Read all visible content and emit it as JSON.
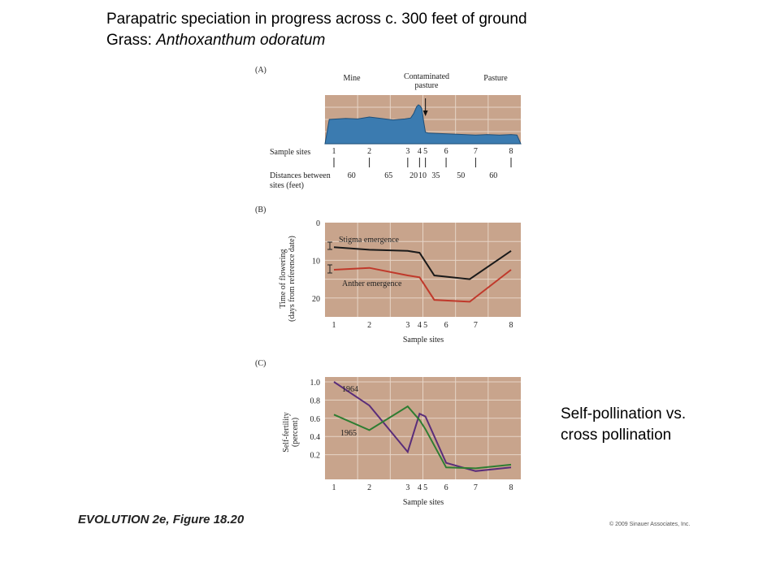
{
  "slide": {
    "title_line1": "Parapatric speciation in progress across c. 300 feet of ground",
    "title_line2_prefix": "Grass: ",
    "title_line2_italic": "Anthoxanthum odoratum",
    "side_note_line1": "Self-pollination  vs.",
    "side_note_line2": "cross pollination",
    "footer_left": "EVOLUTION 2e, Figure 18.20",
    "footer_right": "© 2009 Sinauer Associates, Inc."
  },
  "colors": {
    "panel_bg": "#c8a48c",
    "grid": "#e6d4c6",
    "profile_fill": "#3b7bb0",
    "stigma": "#1a1a1a",
    "anther": "#c0392b",
    "series_1964": "#5a2d7a",
    "series_1965": "#2e7d32"
  },
  "chart_data": [
    {
      "type": "area",
      "panel_label": "(A)",
      "region_labels": [
        "Mine",
        "Contaminated\npasture",
        "Pasture"
      ],
      "site_row_label": "Sample sites",
      "sites": [
        "1",
        "2",
        "3",
        "4",
        "5",
        "6",
        "7",
        "8"
      ],
      "distance_row_label_line1": "Distances between",
      "distance_row_label_line2": "sites (feet)",
      "distances": [
        "60",
        "65",
        "20",
        "10",
        "35",
        "50",
        "60"
      ],
      "site_positions": [
        0,
        60,
        125,
        145,
        155,
        190,
        240,
        300
      ],
      "profile": {
        "x": [
          -8,
          20,
          40,
          60,
          80,
          100,
          120,
          130,
          135,
          140,
          143,
          146,
          149,
          152,
          155,
          160,
          180,
          200,
          220,
          240,
          260,
          280,
          300,
          310
        ],
        "y": [
          0.5,
          0.52,
          0.51,
          0.55,
          0.52,
          0.49,
          0.51,
          0.53,
          0.62,
          0.76,
          0.8,
          0.78,
          0.72,
          0.45,
          0.24,
          0.22,
          0.21,
          0.2,
          0.19,
          0.18,
          0.19,
          0.18,
          0.19,
          0.18
        ]
      },
      "arrow_at_site": "5"
    },
    {
      "type": "line",
      "panel_label": "(B)",
      "ylabel_line1": "Time of flowering",
      "ylabel_line2": "(days from reference date)",
      "xlabel": "Sample sites",
      "y_ticks": [
        "0",
        "10",
        "20"
      ],
      "ylim": [
        0,
        25
      ],
      "y_inverted": true,
      "sites": [
        "1",
        "2",
        "3",
        "4",
        "5",
        "6",
        "7",
        "8"
      ],
      "series": [
        {
          "name": "Stigma emergence",
          "x": [
            0,
            60,
            125,
            145,
            170,
            230,
            300
          ],
          "y": [
            6.5,
            7.2,
            7.5,
            8.0,
            14.0,
            15.0,
            7.5
          ]
        },
        {
          "name": "Anther emergence",
          "x": [
            0,
            60,
            125,
            145,
            170,
            230,
            300
          ],
          "y": [
            12.5,
            12.0,
            14.0,
            14.5,
            20.5,
            21.0,
            12.5
          ]
        }
      ]
    },
    {
      "type": "line",
      "panel_label": "(C)",
      "ylabel_line1": "Self-fertility",
      "ylabel_line2": "(percent)",
      "xlabel": "Sample sites",
      "y_ticks": [
        "1.0",
        "0.8",
        "0.6",
        "0.4",
        "0.2"
      ],
      "ylim": [
        0,
        1.0
      ],
      "sites": [
        "1",
        "2",
        "3",
        "4",
        "5",
        "6",
        "7",
        "8"
      ],
      "series": [
        {
          "name": "1964",
          "x": [
            0,
            60,
            125,
            145,
            155,
            190,
            240,
            300
          ],
          "y": [
            1.0,
            0.74,
            0.23,
            0.65,
            0.62,
            0.11,
            0.02,
            0.06
          ]
        },
        {
          "name": "1965",
          "x": [
            0,
            60,
            125,
            145,
            155,
            190,
            240,
            300
          ],
          "y": [
            0.64,
            0.47,
            0.73,
            0.58,
            0.48,
            0.06,
            0.05,
            0.09
          ]
        }
      ]
    }
  ]
}
